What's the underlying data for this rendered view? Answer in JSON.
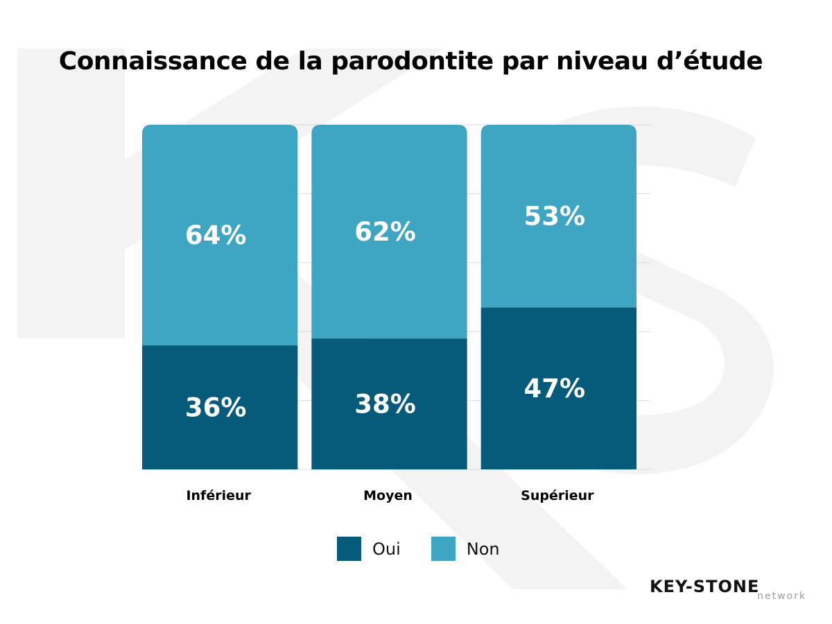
{
  "title": "Connaissance de la parodontite par niveau d’étude",
  "chart_data": {
    "type": "bar",
    "stacked": true,
    "categories": [
      "Inférieur",
      "Moyen",
      "Supérieur"
    ],
    "series": [
      {
        "name": "Oui",
        "values": [
          36,
          38,
          47
        ],
        "labels": [
          "36%",
          "38%",
          "47%"
        ],
        "color": "#065a7a"
      },
      {
        "name": "Non",
        "values": [
          64,
          62,
          53
        ],
        "labels": [
          "64%",
          "62%",
          "53%"
        ],
        "color": "#3ea6c3"
      }
    ],
    "ylim": [
      0,
      100
    ],
    "grid": true,
    "legend_position": "bottom"
  },
  "logo": {
    "main": "KEY-STONE",
    "sub": "network"
  }
}
